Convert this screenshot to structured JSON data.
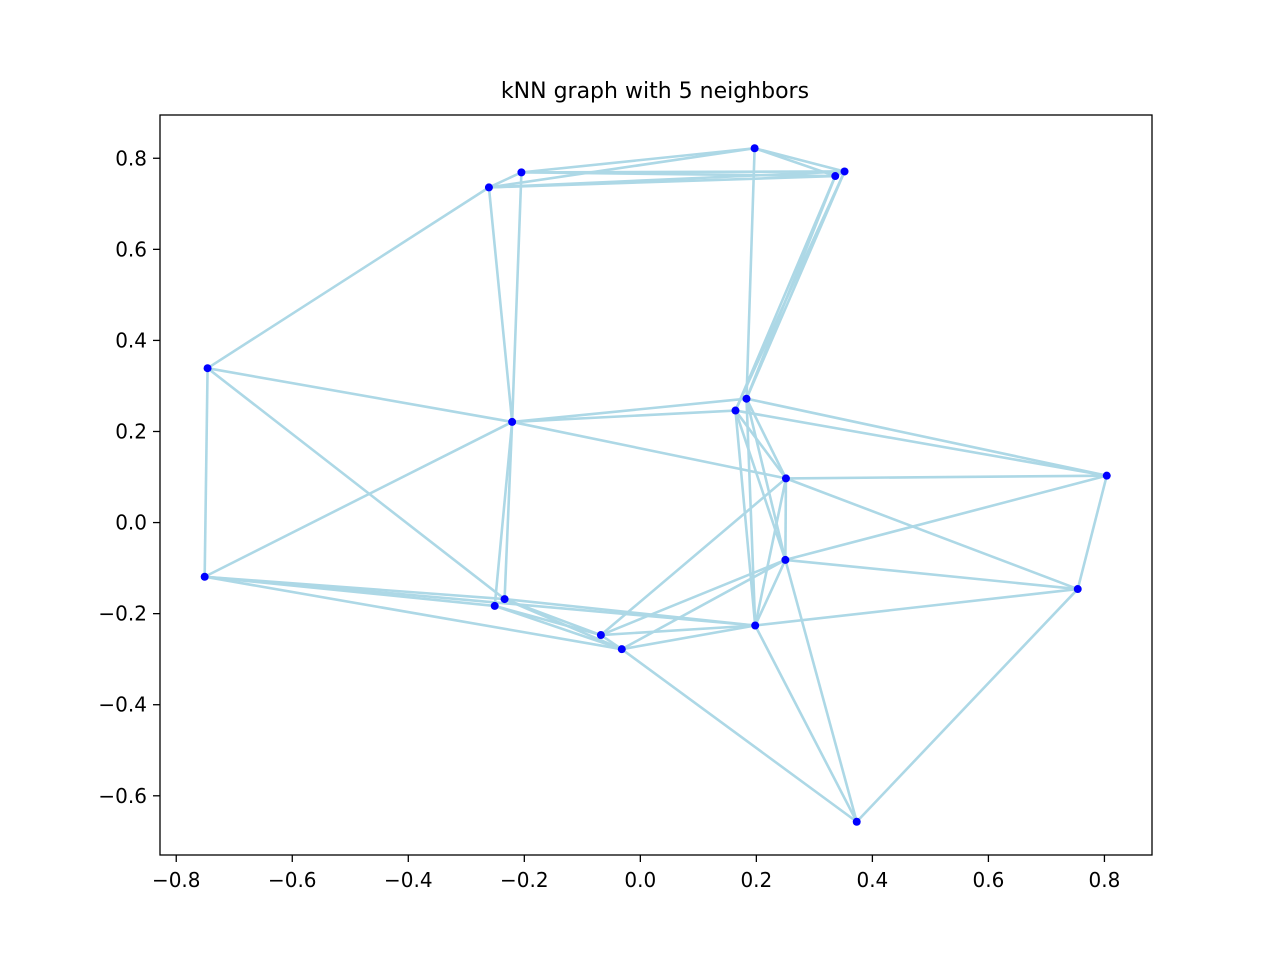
{
  "chart_data": {
    "type": "scatter",
    "title": "kNN graph with 5 neighbors",
    "xlabel": "",
    "ylabel": "",
    "xlim": [
      -0.828,
      0.882
    ],
    "ylim": [
      -0.73,
      0.895
    ],
    "grid": false,
    "xticks": [
      -0.8,
      -0.6,
      -0.4,
      -0.2,
      0.0,
      0.2,
      0.4,
      0.6,
      0.8
    ],
    "xtick_labels": [
      "−0.8",
      "−0.6",
      "−0.4",
      "−0.2",
      "0.0",
      "0.2",
      "0.4",
      "0.6",
      "0.8"
    ],
    "yticks": [
      -0.6,
      -0.4,
      -0.2,
      0.0,
      0.2,
      0.4,
      0.6,
      0.8
    ],
    "ytick_labels": [
      "−0.6",
      "−0.4",
      "−0.2",
      "0.0",
      "0.2",
      "0.4",
      "0.6",
      "0.8"
    ],
    "colors": {
      "edge": "#add8e6",
      "node": "#0000ff"
    },
    "nodes": [
      {
        "x": 0.197,
        "y": 0.822
      },
      {
        "x": 0.352,
        "y": 0.771
      },
      {
        "x": 0.336,
        "y": 0.761
      },
      {
        "x": -0.205,
        "y": 0.769
      },
      {
        "x": -0.261,
        "y": 0.736
      },
      {
        "x": -0.746,
        "y": 0.339
      },
      {
        "x": -0.221,
        "y": 0.221
      },
      {
        "x": 0.183,
        "y": 0.272
      },
      {
        "x": 0.164,
        "y": 0.246
      },
      {
        "x": 0.251,
        "y": 0.097
      },
      {
        "x": 0.804,
        "y": 0.103
      },
      {
        "x": -0.751,
        "y": -0.119
      },
      {
        "x": 0.25,
        "y": -0.082
      },
      {
        "x": 0.754,
        "y": -0.146
      },
      {
        "x": -0.234,
        "y": -0.168
      },
      {
        "x": -0.251,
        "y": -0.183
      },
      {
        "x": -0.068,
        "y": -0.247
      },
      {
        "x": 0.198,
        "y": -0.226
      },
      {
        "x": -0.032,
        "y": -0.278
      },
      {
        "x": 0.373,
        "y": -0.657
      }
    ],
    "edges": [
      [
        0,
        1
      ],
      [
        0,
        2
      ],
      [
        0,
        3
      ],
      [
        0,
        4
      ],
      [
        0,
        7
      ],
      [
        1,
        2
      ],
      [
        1,
        3
      ],
      [
        1,
        4
      ],
      [
        1,
        7
      ],
      [
        1,
        8
      ],
      [
        2,
        3
      ],
      [
        2,
        4
      ],
      [
        2,
        7
      ],
      [
        2,
        8
      ],
      [
        3,
        4
      ],
      [
        3,
        6
      ],
      [
        4,
        5
      ],
      [
        4,
        6
      ],
      [
        5,
        6
      ],
      [
        5,
        11
      ],
      [
        5,
        14
      ],
      [
        6,
        7
      ],
      [
        6,
        8
      ],
      [
        6,
        9
      ],
      [
        6,
        11
      ],
      [
        6,
        14
      ],
      [
        6,
        15
      ],
      [
        7,
        9
      ],
      [
        7,
        10
      ],
      [
        7,
        12
      ],
      [
        7,
        17
      ],
      [
        8,
        9
      ],
      [
        8,
        10
      ],
      [
        8,
        12
      ],
      [
        8,
        17
      ],
      [
        9,
        10
      ],
      [
        9,
        12
      ],
      [
        9,
        13
      ],
      [
        9,
        16
      ],
      [
        9,
        17
      ],
      [
        10,
        12
      ],
      [
        10,
        13
      ],
      [
        11,
        14
      ],
      [
        11,
        15
      ],
      [
        11,
        17
      ],
      [
        11,
        18
      ],
      [
        12,
        13
      ],
      [
        12,
        16
      ],
      [
        12,
        17
      ],
      [
        12,
        18
      ],
      [
        12,
        19
      ],
      [
        13,
        17
      ],
      [
        13,
        19
      ],
      [
        14,
        16
      ],
      [
        14,
        17
      ],
      [
        14,
        18
      ],
      [
        15,
        16
      ],
      [
        15,
        18
      ],
      [
        16,
        17
      ],
      [
        16,
        18
      ],
      [
        17,
        18
      ],
      [
        17,
        19
      ],
      [
        18,
        19
      ]
    ]
  }
}
